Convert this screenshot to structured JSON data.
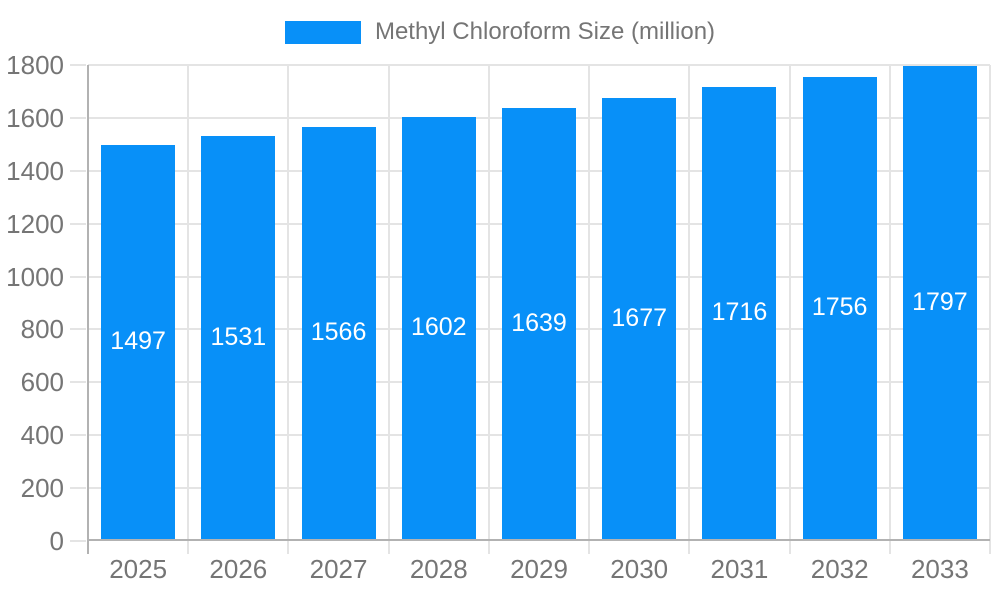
{
  "legend": {
    "series_label": "Methyl Chloroform Size (million)"
  },
  "chart_data": {
    "type": "bar",
    "title": "",
    "xlabel": "",
    "ylabel": "",
    "categories": [
      "2025",
      "2026",
      "2027",
      "2028",
      "2029",
      "2030",
      "2031",
      "2032",
      "2033"
    ],
    "series": [
      {
        "name": "Methyl Chloroform Size (million)",
        "values": [
          1497,
          1531,
          1566,
          1602,
          1639,
          1677,
          1716,
          1756,
          1797
        ]
      }
    ],
    "value_labels_shown": true,
    "ylim": [
      0,
      1800
    ],
    "ytick_interval": 200,
    "ytick_labels": [
      "0",
      "200",
      "400",
      "600",
      "800",
      "1000",
      "1200",
      "1400",
      "1600",
      "1800"
    ],
    "grid": true,
    "legend_position": "top-center",
    "colors": {
      "bar": "#0890F8",
      "value_label": "#FFFFFF",
      "axis_text": "#757575",
      "axis_line": "#B2B2B2",
      "gridline": "#E4E4E4"
    }
  }
}
